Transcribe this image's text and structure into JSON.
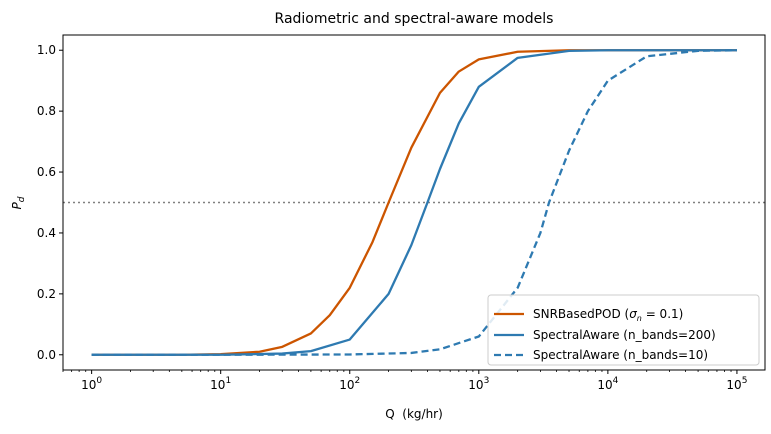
{
  "chart_data": {
    "type": "line",
    "title": "Radiometric and spectral-aware models",
    "xlabel": "Q  (kg/hr)",
    "ylabel": "P",
    "ylabel_subscript": "d",
    "xscale": "log",
    "xlim": [
      0.6,
      165000
    ],
    "ylim": [
      -0.05,
      1.05
    ],
    "x_ticks": [
      {
        "value": 1,
        "base": "10",
        "exp": "0"
      },
      {
        "value": 10,
        "base": "10",
        "exp": "1"
      },
      {
        "value": 100,
        "base": "10",
        "exp": "2"
      },
      {
        "value": 1000,
        "base": "10",
        "exp": "3"
      },
      {
        "value": 10000,
        "base": "10",
        "exp": "4"
      },
      {
        "value": 100000,
        "base": "10",
        "exp": "5"
      }
    ],
    "y_ticks": [
      {
        "value": 0.0,
        "label": "0.0"
      },
      {
        "value": 0.2,
        "label": "0.2"
      },
      {
        "value": 0.4,
        "label": "0.4"
      },
      {
        "value": 0.6,
        "label": "0.6"
      },
      {
        "value": 0.8,
        "label": "0.8"
      },
      {
        "value": 1.0,
        "label": "1.0"
      }
    ],
    "reference_line": {
      "y": 0.5,
      "style": "dotted",
      "color": "#808080"
    },
    "legend_position": "lower-right",
    "series": [
      {
        "name": "SNRBasedPOD",
        "legend_label": "SNRBasedPOD  (",
        "legend_math_var": "σ",
        "legend_math_sub": "n",
        "legend_math_rest": " = 0.1)",
        "color": "#cc5500",
        "style": "solid",
        "x": [
          1,
          2,
          5,
          10,
          20,
          30,
          50,
          70,
          100,
          150,
          200,
          300,
          500,
          700,
          1000,
          2000,
          5000,
          10000,
          100000
        ],
        "y": [
          0.0,
          0.0,
          0.0,
          0.002,
          0.01,
          0.026,
          0.07,
          0.13,
          0.22,
          0.37,
          0.5,
          0.68,
          0.86,
          0.93,
          0.97,
          0.995,
          1.0,
          1.0,
          1.0
        ]
      },
      {
        "name": "SpectralAware (n_bands=200)",
        "legend_label": "SpectralAware  (n_bands=200)",
        "color": "#2e7ab1",
        "style": "solid",
        "x": [
          1,
          5,
          10,
          30,
          50,
          100,
          200,
          300,
          400,
          500,
          700,
          1000,
          2000,
          5000,
          10000,
          100000
        ],
        "y": [
          0.0,
          0.0,
          0.0,
          0.004,
          0.012,
          0.05,
          0.2,
          0.36,
          0.5,
          0.61,
          0.76,
          0.88,
          0.975,
          0.998,
          1.0,
          1.0
        ]
      },
      {
        "name": "SpectralAware (n_bands=10)",
        "legend_label": "SpectralAware  (n_bands=10)",
        "color": "#2e7ab1",
        "style": "dashed",
        "x": [
          1,
          10,
          100,
          300,
          500,
          1000,
          2000,
          3000,
          3500,
          5000,
          7000,
          10000,
          20000,
          50000,
          100000
        ],
        "y": [
          0.0,
          0.0,
          0.001,
          0.006,
          0.018,
          0.06,
          0.22,
          0.4,
          0.5,
          0.67,
          0.8,
          0.9,
          0.98,
          0.998,
          1.0
        ]
      }
    ]
  }
}
